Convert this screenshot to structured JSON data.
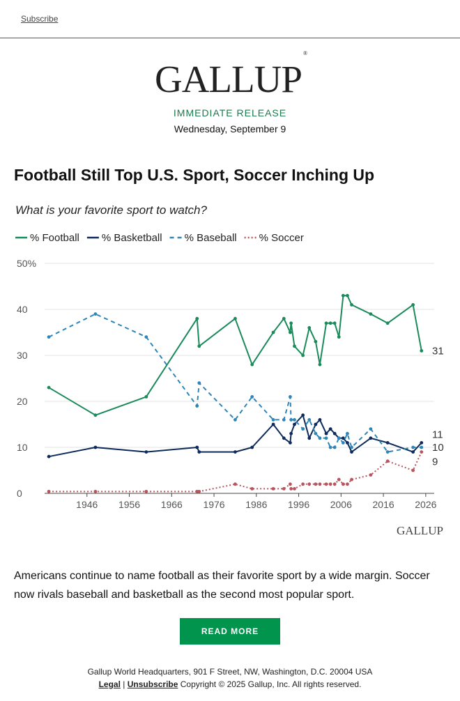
{
  "header": {
    "subscribe_label": "Subscribe"
  },
  "brand": {
    "logo_text": "GALLUP",
    "logo_mark": "®",
    "chart_watermark": "GALLUP"
  },
  "release": {
    "label": "IMMEDIATE RELEASE",
    "date": "Wednesday, September 9"
  },
  "article": {
    "headline": "Football Still Top U.S. Sport, Soccer Inching Up",
    "body": "Americans continue to name football as their favorite sport by a wide margin. Soccer now rivals baseball and basketball as the second most popular sport.",
    "cta_label": "READ MORE"
  },
  "footer": {
    "address": "Gallup World Headquarters, 901 F Street, NW, Washington, D.C. 20004 USA",
    "legal_label": "Legal",
    "separator": "|",
    "unsubscribe_label": "Unsubscribe",
    "copyright": "Copyright © 2025 Gallup, Inc. All rights reserved."
  },
  "chart_data": {
    "type": "line",
    "title": "What is your favorite sport to watch?",
    "xlabel": "",
    "ylabel": "",
    "xlim": [
      1936,
      2028
    ],
    "ylim": [
      0,
      50
    ],
    "x_ticks": [
      1946,
      1956,
      1966,
      1976,
      1986,
      1996,
      2006,
      2016,
      2026
    ],
    "y_ticks": [
      0,
      10,
      20,
      30,
      40,
      50
    ],
    "y_tick_labels": [
      "0",
      "10",
      "20",
      "30",
      "40",
      "50%"
    ],
    "grid": true,
    "legend": "top-left",
    "series": [
      {
        "name": "% Football",
        "color": "#1a8a5a",
        "dash": "solid",
        "end_label": "31",
        "points": [
          [
            1937,
            23
          ],
          [
            1948,
            17
          ],
          [
            1960,
            21
          ],
          [
            1972,
            38
          ],
          [
            1972.5,
            32
          ],
          [
            1981,
            38
          ],
          [
            1985,
            28
          ],
          [
            1990,
            35
          ],
          [
            1992.5,
            38
          ],
          [
            1994,
            35
          ],
          [
            1994.2,
            37
          ],
          [
            1995,
            32
          ],
          [
            1997,
            30
          ],
          [
            1998.5,
            36
          ],
          [
            2000,
            33
          ],
          [
            2001,
            28
          ],
          [
            2002.5,
            37
          ],
          [
            2003.5,
            37
          ],
          [
            2004.5,
            37
          ],
          [
            2005.5,
            34
          ],
          [
            2006.5,
            43
          ],
          [
            2007.5,
            43
          ],
          [
            2008.5,
            41
          ],
          [
            2013,
            39
          ],
          [
            2017,
            37
          ],
          [
            2023,
            41
          ],
          [
            2025,
            31
          ]
        ]
      },
      {
        "name": "% Basketball",
        "color": "#0d2a5a",
        "dash": "solid",
        "end_label": "11",
        "points": [
          [
            1937,
            8
          ],
          [
            1948,
            10
          ],
          [
            1960,
            9
          ],
          [
            1972,
            10
          ],
          [
            1972.5,
            9
          ],
          [
            1981,
            9
          ],
          [
            1985,
            10
          ],
          [
            1990,
            15
          ],
          [
            1992.5,
            12
          ],
          [
            1994,
            11
          ],
          [
            1994.2,
            13
          ],
          [
            1995,
            15
          ],
          [
            1997,
            17
          ],
          [
            1998.5,
            12
          ],
          [
            2000,
            15
          ],
          [
            2001,
            16
          ],
          [
            2002.5,
            13
          ],
          [
            2003.5,
            14
          ],
          [
            2004.5,
            13
          ],
          [
            2005.5,
            12
          ],
          [
            2006.5,
            12
          ],
          [
            2007.5,
            11
          ],
          [
            2008.5,
            9
          ],
          [
            2013,
            12
          ],
          [
            2017,
            11
          ],
          [
            2023,
            9
          ],
          [
            2025,
            11
          ]
        ]
      },
      {
        "name": "% Baseball",
        "color": "#2e86b8",
        "dash": "dashed",
        "end_label": "10",
        "points": [
          [
            1937,
            34
          ],
          [
            1948,
            39
          ],
          [
            1960,
            34
          ],
          [
            1972,
            19
          ],
          [
            1972.5,
            24
          ],
          [
            1981,
            16
          ],
          [
            1985,
            21
          ],
          [
            1990,
            16
          ],
          [
            1992.5,
            16
          ],
          [
            1994,
            21
          ],
          [
            1994.2,
            16
          ],
          [
            1995,
            16
          ],
          [
            1997,
            14
          ],
          [
            1998.5,
            16
          ],
          [
            2000,
            13
          ],
          [
            2001,
            12
          ],
          [
            2002.5,
            12
          ],
          [
            2003.5,
            10
          ],
          [
            2004.5,
            10
          ],
          [
            2005.5,
            12
          ],
          [
            2006.5,
            11
          ],
          [
            2007.5,
            13
          ],
          [
            2008.5,
            10
          ],
          [
            2013,
            14
          ],
          [
            2017,
            9
          ],
          [
            2023,
            10
          ],
          [
            2025,
            10
          ]
        ]
      },
      {
        "name": "% Soccer",
        "color": "#b8545e",
        "dash": "dotted",
        "end_label": "9",
        "points": [
          [
            1937,
            0.4
          ],
          [
            1948,
            0.4
          ],
          [
            1960,
            0.4
          ],
          [
            1972,
            0.4
          ],
          [
            1972.5,
            0.4
          ],
          [
            1981,
            2
          ],
          [
            1985,
            1
          ],
          [
            1990,
            1
          ],
          [
            1992.5,
            1
          ],
          [
            1994,
            2
          ],
          [
            1994.2,
            1
          ],
          [
            1995,
            1
          ],
          [
            1997,
            2
          ],
          [
            1998.5,
            2
          ],
          [
            2000,
            2
          ],
          [
            2001,
            2
          ],
          [
            2002.5,
            2
          ],
          [
            2003.5,
            2
          ],
          [
            2004.5,
            2
          ],
          [
            2005.5,
            3
          ],
          [
            2006.5,
            2
          ],
          [
            2007.5,
            2
          ],
          [
            2008.5,
            3
          ],
          [
            2013,
            4
          ],
          [
            2017,
            7
          ],
          [
            2023,
            5
          ],
          [
            2025,
            9
          ]
        ]
      }
    ]
  }
}
